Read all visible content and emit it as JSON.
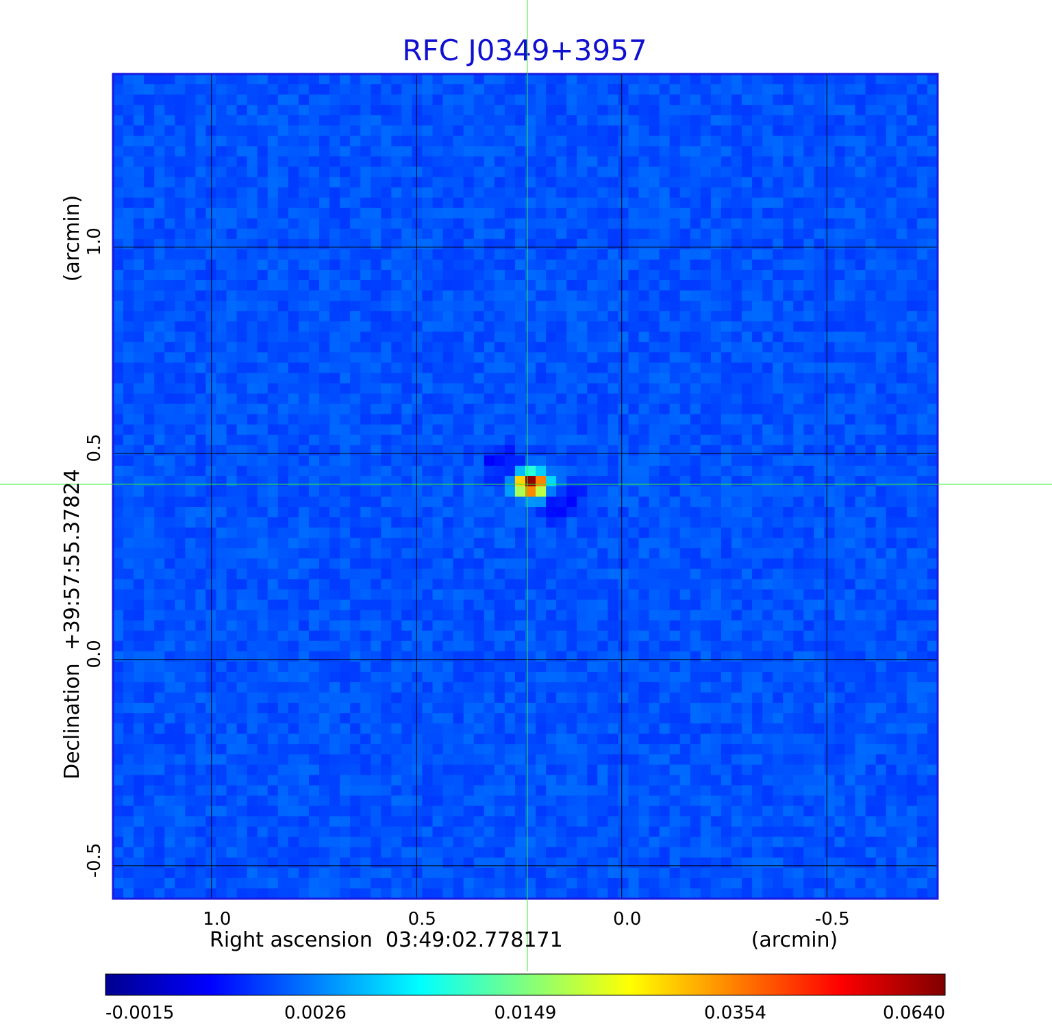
{
  "chart_data": {
    "type": "heatmap",
    "title": "RFC J0349+3957",
    "xlabel": "Right ascension  03:49:02.778171",
    "xunit": "(arcmin)",
    "ylabel": "Declination  +39:57:55.37824",
    "yunit": "(arcmin)",
    "xlim": [
      1.24,
      -0.77
    ],
    "ylim": [
      -0.58,
      1.42
    ],
    "x_ticks": [
      {
        "value": 1.0,
        "label": "1.0"
      },
      {
        "value": 0.5,
        "label": "0.5"
      },
      {
        "value": 0.0,
        "label": "0.0"
      },
      {
        "value": -0.5,
        "label": "-0.5"
      }
    ],
    "y_ticks": [
      {
        "value": 1.0,
        "label": "1.0"
      },
      {
        "value": 0.5,
        "label": "0.5"
      },
      {
        "value": 0.0,
        "label": "0.0"
      },
      {
        "value": -0.5,
        "label": "-0.5"
      }
    ],
    "grid": true,
    "crosshair": {
      "x": 0.23,
      "y": 0.425,
      "color": "#33ee33"
    },
    "colormap": "jet",
    "colorbar": {
      "placement": "bottom",
      "tick_labels": [
        "-0.0015",
        "0.0026",
        "0.0149",
        "0.0354",
        "0.0640"
      ],
      "range": [
        -0.0015,
        0.064
      ]
    },
    "source": {
      "x": 0.22,
      "y": 0.425,
      "peak": 0.064
    },
    "background_level": 0.0
  },
  "colors": {
    "title": "#1010d0",
    "frame": "#1818e0",
    "grid": "#000000",
    "crosshair": "#33ee33"
  }
}
